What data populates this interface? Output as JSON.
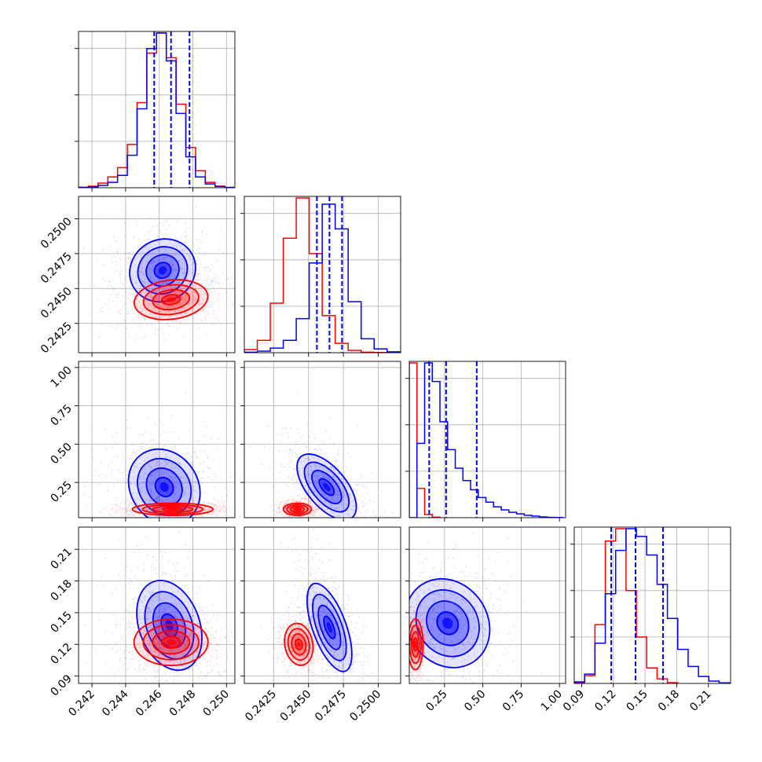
{
  "chart_data": {
    "type": "corner",
    "parameters": [
      {
        "ticks": [
          "0.242",
          "0.244",
          "0.246",
          "0.248",
          "0.250"
        ],
        "range": [
          0.2412,
          0.2505
        ]
      },
      {
        "ticks": [
          "0.2425",
          "0.2450",
          "0.2475",
          "0.2500"
        ],
        "range": [
          0.2404,
          0.2516
        ]
      },
      {
        "ticks": [
          "0.25",
          "0.50",
          "0.75",
          "1.00"
        ],
        "range": [
          0.02,
          1.04
        ]
      },
      {
        "ticks": [
          "0.09",
          "0.12",
          "0.15",
          "0.18",
          "0.21"
        ],
        "range": [
          0.083,
          0.231
        ]
      }
    ],
    "samples": [
      {
        "name": "",
        "color": "#0000ff",
        "quantiles": [
          [
            0.2457,
            0.2467,
            0.2478
          ],
          [
            0.2456,
            0.2465,
            0.2474
          ],
          [
            0.15,
            0.26,
            0.46
          ],
          [
            0.118,
            0.141,
            0.167
          ]
        ],
        "hist": [
          [
            0.2,
            0.6,
            1.5,
            3.5,
            8,
            21,
            51,
            90,
            100,
            82,
            48,
            20,
            7,
            2.5,
            0.8,
            0.2
          ],
          [
            0.3,
            1,
            3,
            8,
            22,
            58,
            96,
            80,
            33,
            9,
            2.5,
            0.6
          ],
          [
            0,
            48,
            100,
            88,
            62,
            44,
            32,
            24,
            18,
            13,
            10,
            7,
            5,
            3.5,
            2.5,
            1.5,
            1,
            0.5,
            0.2,
            0.1
          ],
          [
            1,
            6,
            26,
            58,
            86,
            100,
            95,
            83,
            64,
            42,
            22,
            11,
            4.5,
            1.5,
            0.4
          ]
        ],
        "hist_x0": [
          0.2412,
          0.2404,
          0.02,
          0.083
        ],
        "hist_dx": [
          0.00058,
          0.00093,
          0.05,
          0.0098
        ]
      },
      {
        "name": "",
        "color": "#ff0000",
        "hist": [
          [
            0.3,
            1,
            3,
            7,
            13,
            28,
            55,
            87,
            100,
            84,
            54,
            26,
            11,
            3.5,
            1,
            0.2
          ],
          [
            2,
            8,
            32,
            74,
            100,
            64,
            24,
            6,
            1.5,
            0.3,
            0.1
          ],
          [
            100,
            19,
            2,
            0.3
          ],
          [
            0.5,
            5,
            38,
            92,
            100,
            60,
            30,
            10,
            3,
            0.5
          ]
        ],
        "hist_x0": [
          0.2412,
          0.2404,
          0.02,
          0.083
        ],
        "hist_dx": [
          0.00058,
          0.00093,
          0.05,
          0.0098
        ]
      }
    ],
    "correlations": [
      {
        "row": 1,
        "col": 0,
        "blue": {
          "center": [
            0.2462,
            0.2463
          ],
          "sd": [
            0.001,
            0.0011
          ],
          "angle": -30
        },
        "red": {
          "center": [
            0.2467,
            0.2442
          ],
          "sd": [
            0.0011,
            0.0007
          ],
          "angle": -7
        }
      },
      {
        "row": 2,
        "col": 0,
        "blue": {
          "center": [
            0.2463,
            0.22
          ],
          "sd": [
            0.001,
            0.13
          ],
          "angle": -35
        },
        "red": {
          "center": [
            0.2468,
            0.075
          ],
          "sd": [
            0.0012,
            0.02
          ],
          "angle": 0
        }
      },
      {
        "row": 2,
        "col": 1,
        "blue": {
          "center": [
            0.2463,
            0.22
          ],
          "sd": [
            0.0007,
            0.13
          ],
          "angle": -40
        },
        "red": {
          "center": [
            0.2442,
            0.075
          ],
          "sd": [
            0.0005,
            0.02
          ],
          "angle": 0
        }
      },
      {
        "row": 3,
        "col": 0,
        "blue": {
          "center": [
            0.2466,
            0.138
          ],
          "sd": [
            0.0009,
            0.022
          ],
          "angle": -20
        },
        "red": {
          "center": [
            0.2467,
            0.122
          ],
          "sd": [
            0.0011,
            0.011
          ],
          "angle": 0
        }
      },
      {
        "row": 3,
        "col": 1,
        "blue": {
          "center": [
            0.2465,
            0.136
          ],
          "sd": [
            0.0006,
            0.022
          ],
          "angle": -20
        },
        "red": {
          "center": [
            0.2443,
            0.12
          ],
          "sd": [
            0.0005,
            0.01
          ],
          "angle": -10
        }
      },
      {
        "row": 3,
        "col": 2,
        "blue": {
          "center": [
            0.27,
            0.14
          ],
          "sd": [
            0.13,
            0.022
          ],
          "angle": -35
        },
        "red": {
          "center": [
            0.06,
            0.12
          ],
          "sd": [
            0.025,
            0.012
          ],
          "angle": 0
        }
      }
    ]
  }
}
